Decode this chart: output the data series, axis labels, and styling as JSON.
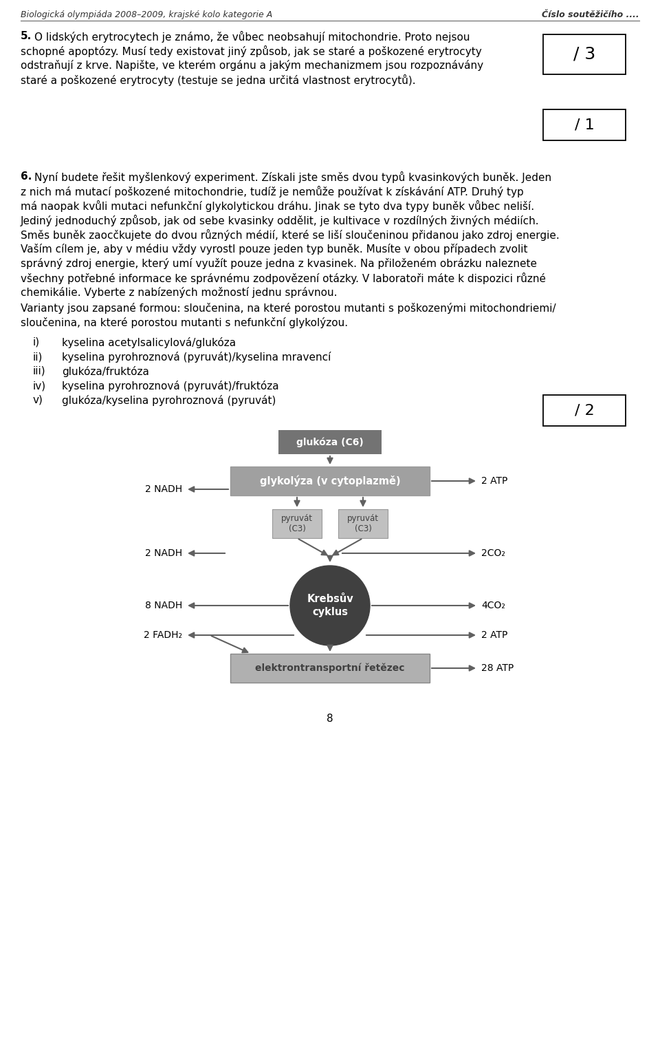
{
  "background_color": "#ffffff",
  "header_left": "Biologická olympiáda 2008–2009, krajské kolo kategorie A",
  "header_right": "Číslo soutěžičího ....",
  "q5_bold": "5.",
  "q5_lines": [
    "O lidských erytrocytech je známo, že vůbec neobsahují mitochondrie. Proto nejsou",
    "schopné apoptózy. Musí tedy existovat jiný způsob, jak se staré a poškozené erytrocyty",
    "odstraňují z krve. Napište, ve kterém orgánu a jakým mechanizmem jsou rozpoznávány",
    "staré a poškozené erytrocyty (testuje se jedna určitá vlastnost erytrocytů)."
  ],
  "score_box_3": "/ 3",
  "score_box_1": "/ 1",
  "score_box_2": "/ 2",
  "q6_bold": "6.",
  "q6_lines": [
    "Nyní budete řešit myšlenkový experiment. Získali jste směs dvou typů kvasinkových buněk. Jeden",
    "z nich má mutací poškozené mitochondrie, tudíž je nemůže používat k získávání ATP. Druhý typ",
    "má naopak kvůli mutaci nefunkční glykolytickou dráhu. Jinak se tyto dva typy buněk vůbec neliší.",
    "Jediný jednoduchý způsob, jak od sebe kvasinky oddělit, je kultivace v rozdílných živných médiích.",
    "Směs buněk zaocčkujete do dvou různých médií, které se liší sloučeninou přidanou jako zdroj energie.",
    "Vaším cílem je, aby v médiu vždy vyrostl pouze jeden typ buněk. Musíte v obou případech zvolit",
    "správný zdroj energie, který umí využít pouze jedna z kvasinek. Na přiloženém obrázku naleznete",
    "všechny potřebné informace ke správnému zodpovězení otázky. V laboratoři máte k dispozici různé",
    "chemikálie. Vyberte z nabízených možností jednu správnou."
  ],
  "var_lines": [
    "Varianty jsou zapsané formou: sloučenina, na které porostou mutanti s poškozenými mitochondriemi/",
    "sloučenina, na které porostou mutanti s nefunkční glykolýzou."
  ],
  "options": [
    [
      "i)",
      "kyselina acetylsalicylová/glukóza"
    ],
    [
      "ii)",
      "kyselina pyrohroznová (pyruvát)/kyselina mravencí"
    ],
    [
      "iii)",
      "glukóza/fruktóza"
    ],
    [
      "iv)",
      "kyselina pyrohroznová (pyruvát)/fruktóza"
    ],
    [
      "v)",
      "glukóza/kyselina pyrohroznová (pyruvát)"
    ]
  ],
  "diag": {
    "glukoza_label": "glukóza (C6)",
    "glukoza_color": "#737373",
    "glukoza_text_color": "#ffffff",
    "glyc_label": "glykolýza (v cytoplazmě)",
    "glyc_color": "#a0a0a0",
    "glyc_text_color": "#ffffff",
    "pyruv_label": "pyruvát\n(C3)",
    "pyruv_color": "#c0c0c0",
    "pyruv_text_color": "#404040",
    "krebs_label": "Krebsův\ncyklus",
    "krebs_color": "#404040",
    "krebs_text_color": "#ffffff",
    "etr_label": "elektrontransportní řetězec",
    "etr_color": "#b0b0b0",
    "etr_text_color": "#404040",
    "arrow_color": "#606060",
    "labels": {
      "atp2_glyc": "2 ATP",
      "nadh2_glyc": "2 NADH",
      "nadh2_pyruv": "2 NADH",
      "co2_2": "2CO₂",
      "nadh8": "8 NADH",
      "co2_4": "4CO₂",
      "fadh2": "2 FADH₂",
      "atp2_krebs": "2 ATP",
      "atp28": "28 ATP"
    }
  },
  "page_number": "8"
}
